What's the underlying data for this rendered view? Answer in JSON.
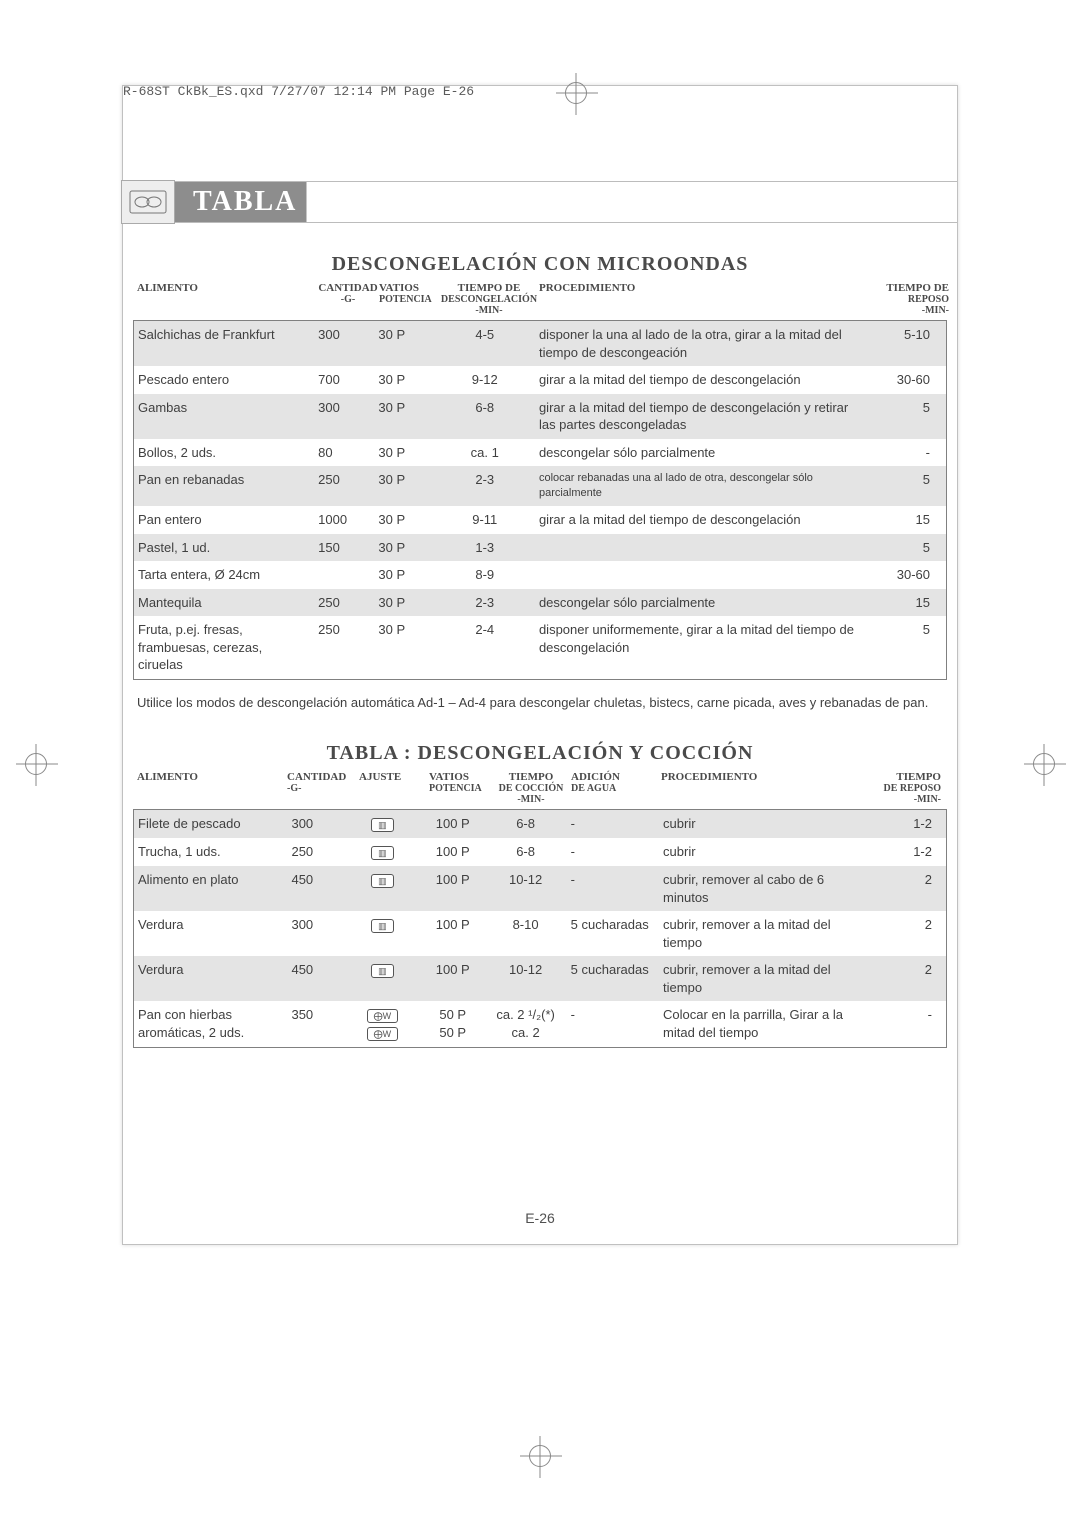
{
  "header_line": "R-68ST CkBk_ES.qxd  7/27/07  12:14 PM  Page E-26",
  "banner_title": "TABLA",
  "page_number": "E-26",
  "section1": {
    "title": "DESCONGELACIÓN CON MICROONDAS",
    "headers": {
      "c1": "ALIMENTO",
      "c2": "CANTIDAD",
      "c2s": "-G-",
      "c3": "VATIOS",
      "c3s": "POTENCIA",
      "c4": "TIEMPO DE",
      "c4s": "DESCONGELACIÓN",
      "c4s2": "-MIN-",
      "c5": "PROCEDIMIENTO",
      "c6": "TIEMPO DE",
      "c6s": "REPOSO",
      "c6s2": "-MIN-"
    },
    "rows": [
      {
        "a": "Salchichas de Frankfurt",
        "q": "300",
        "w": "30 P",
        "t": "4-5",
        "p": "disponer la una al lado de la otra, girar a la mitad del tiempo de descongeación",
        "r": "5-10",
        "shade": true
      },
      {
        "a": "Pescado entero",
        "q": "700",
        "w": "30 P",
        "t": "9-12",
        "p": "girar a la mitad del tiempo de descongelación",
        "r": "30-60",
        "shade": false
      },
      {
        "a": "Gambas",
        "q": "300",
        "w": "30 P",
        "t": "6-8",
        "p": "girar a la mitad del tiempo de descongelación y retirar las partes descongeladas",
        "r": "5",
        "shade": true
      },
      {
        "a": "Bollos, 2 uds.",
        "q": "80",
        "w": "30 P",
        "t": "ca. 1",
        "p": "descongelar sólo parcialmente",
        "r": "-",
        "shade": false
      },
      {
        "a": "Pan en rebanadas",
        "q": "250",
        "w": "30 P",
        "t": "2-3",
        "p": "colocar rebanadas una al lado de otra, descongelar sólo parcialmente",
        "r": "5",
        "shade": true,
        "psmall": true
      },
      {
        "a": "Pan entero",
        "q": "1000",
        "w": "30 P",
        "t": "9-11",
        "p": "girar a la mitad del tiempo de descongelación",
        "r": "15",
        "shade": false
      },
      {
        "a": "Pastel, 1 ud.",
        "q": "150",
        "w": "30 P",
        "t": "1-3",
        "p": "",
        "r": "5",
        "shade": true
      },
      {
        "a": "Tarta entera, Ø 24cm",
        "q": "",
        "w": "30 P",
        "t": "8-9",
        "p": "",
        "r": "30-60",
        "shade": false
      },
      {
        "a": "Mantequila",
        "q": "250",
        "w": "30 P",
        "t": "2-3",
        "p": "descongelar sólo parcialmente",
        "r": "15",
        "shade": true
      },
      {
        "a": "Fruta, p.ej. fresas, frambuesas, cerezas, ciruelas",
        "q": "250",
        "w": "30 P",
        "t": "2-4",
        "p": "disponer uniformemente, girar a la mitad del tiempo de descongelación",
        "r": "5",
        "shade": false
      }
    ],
    "note": "Utilice los modos de descongelación automática Ad-1 – Ad-4 para descongelar chuletas, bistecs, carne picada, aves y rebanadas de pan."
  },
  "section2": {
    "title": "TABLA : DESCONGELACIÓN Y COCCIÓN",
    "headers": {
      "c1": "ALIMENTO",
      "c2": "CANTIDAD",
      "c2s": "-G-",
      "c3": "AJUSTE",
      "c4": "VATIOS",
      "c4s": "POTENCIA",
      "c5": "TIEMPO",
      "c5s": "DE COCCIÓN",
      "c5s2": "-MIN-",
      "c6": "ADICIÓN",
      "c6s": "DE AGUA",
      "c7": "PROCEDIMIENTO",
      "c8": "TIEMPO",
      "c8s": "DE REPOSO",
      "c8s2": "-MIN-"
    },
    "rows": [
      {
        "a": "Filete de pescado",
        "q": "300",
        "mode": "micro",
        "w": "100 P",
        "t": "6-8",
        "add": "-",
        "p": "cubrir",
        "r": "1-2",
        "shade": true
      },
      {
        "a": "Trucha, 1 uds.",
        "q": "250",
        "mode": "micro",
        "w": "100 P",
        "t": "6-8",
        "add": "-",
        "p": "cubrir",
        "r": "1-2",
        "shade": false
      },
      {
        "a": "Alimento en plato",
        "q": "450",
        "mode": "micro",
        "w": "100 P",
        "t": "10-12",
        "add": "-",
        "p": "cubrir, remover al cabo de 6 minutos",
        "r": "2",
        "shade": true
      },
      {
        "a": "Verdura",
        "q": "300",
        "mode": "micro",
        "w": "100 P",
        "t": "8-10",
        "add": "5 cucharadas",
        "p": "cubrir, remover a la mitad del tiempo",
        "r": "2",
        "shade": false
      },
      {
        "a": "Verdura",
        "q": "450",
        "mode": "micro",
        "w": "100 P",
        "t": "10-12",
        "add": "5 cucharadas",
        "p": "cubrir, remover a la mitad del tiempo",
        "r": "2",
        "shade": true
      },
      {
        "a": "Pan con hierbas aromáticas, 2 uds.",
        "q": "350",
        "mode": "grill2",
        "w": "50 P\n50 P",
        "t": "ca. 2 ¹/₂(*)\nca. 2",
        "add": "-",
        "p": "Colocar en la parrilla, Girar a la mitad del tiempo",
        "r": "-",
        "shade": false
      }
    ]
  },
  "icons": {
    "micro_glyph": "▥",
    "grill_glyph": "⨁W"
  },
  "colors": {
    "banner_bg": "#8d8d8d",
    "banner_text": "#ffffff",
    "shade_row": "#e4e4e4",
    "border": "#808080",
    "text": "#404040",
    "header_text": "#4a4a4a"
  }
}
